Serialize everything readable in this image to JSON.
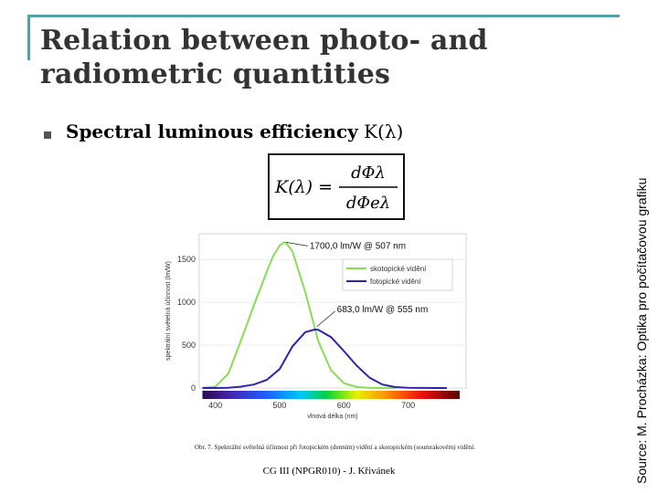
{
  "slide": {
    "title_line1": "Relation between photo- and",
    "title_line2": "radiometric quantities",
    "bullet_bold": "Spectral luminous efficiency",
    "bullet_symbol": "K(λ)",
    "side_source": "Source: M. Procházka: Optika pro počítačovou grafiku",
    "footer": "CG III (NPGR010) - J. Křivánek"
  },
  "formula": {
    "lhs": "K(λ) =",
    "numerator": "dΦλ",
    "denominator": "dΦeλ"
  },
  "chart_data": {
    "type": "line",
    "xlabel": "vlnová délka (nm)",
    "ylabel": "spektrální světelná účinnost (lm/W)",
    "xlim": [
      375,
      790
    ],
    "ylim": [
      0,
      1800
    ],
    "xticks": [
      400,
      500,
      600,
      700
    ],
    "yticks": [
      0,
      500,
      1000,
      1500
    ],
    "legend": [
      "skotopické vidění",
      "fotopické vidění"
    ],
    "legend_position": "upper-right",
    "caption": "Obr. 7. Spektrální světelná účinnost při fotopickém (denním) vidění a skotopickém (soumrakovém) vidění.",
    "series": [
      {
        "name": "skotopické vidění",
        "color": "#88dd55",
        "x": [
          380,
          400,
          420,
          440,
          460,
          480,
          490,
          500,
          507,
          510,
          520,
          540,
          560,
          580,
          600,
          620,
          640,
          660,
          680
        ],
        "values": [
          1,
          16,
          164,
          554,
          964,
          1357,
          1540,
          1660,
          1700,
          1695,
          1594,
          1119,
          548,
          207,
          56,
          12,
          2,
          0.5,
          0
        ]
      },
      {
        "name": "fotopické vidění",
        "color": "#3322aa",
        "x": [
          380,
          400,
          420,
          440,
          460,
          480,
          500,
          520,
          540,
          555,
          560,
          580,
          600,
          620,
          640,
          660,
          680,
          700,
          720,
          740,
          760
        ],
        "values": [
          0,
          0.3,
          3,
          16,
          41,
          95,
          220,
          486,
          652,
          683,
          680,
          594,
          431,
          260,
          119,
          41,
          11,
          3,
          1,
          0.2,
          0
        ]
      }
    ],
    "annotations": [
      {
        "text": "1700,0 lm/W @ 507 nm",
        "x": 507,
        "y": 1700
      },
      {
        "text": "683,0 lm/W @ 555 nm",
        "x": 555,
        "y": 683
      }
    ]
  }
}
